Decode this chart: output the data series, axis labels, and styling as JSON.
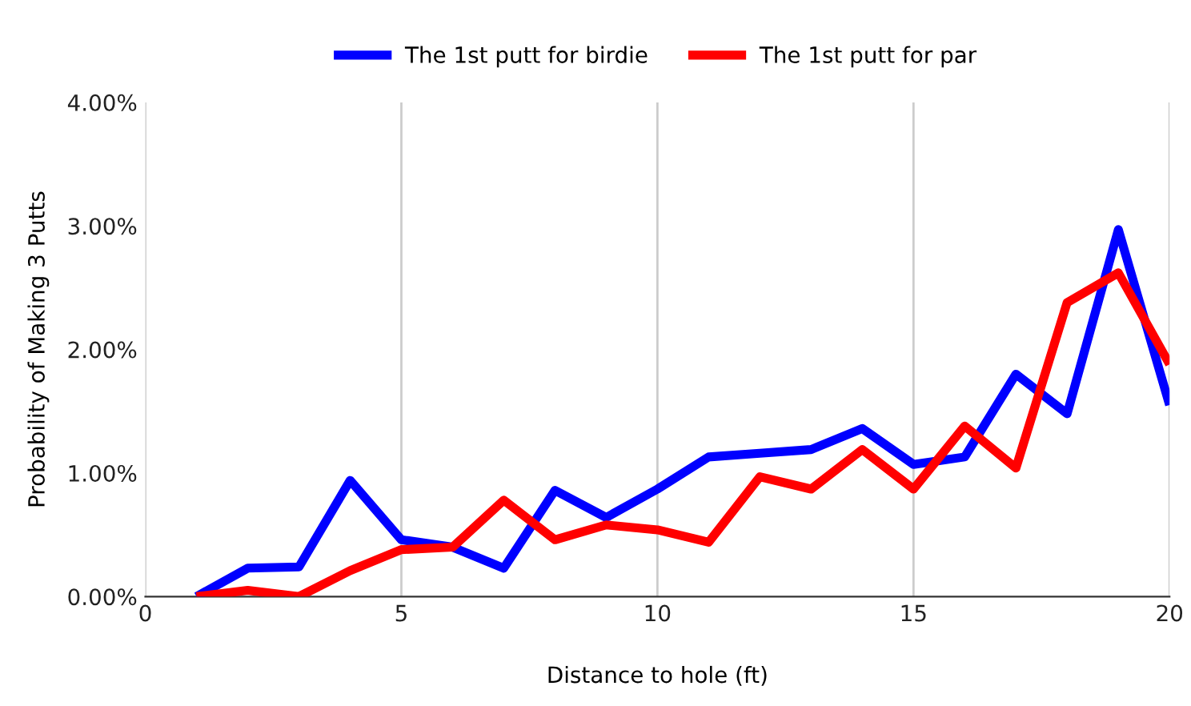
{
  "chart_data": {
    "type": "line",
    "xlabel": "Distance to hole (ft)",
    "ylabel": "Probability of Making 3 Putts",
    "x": [
      1,
      2,
      3,
      4,
      5,
      6,
      7,
      8,
      9,
      10,
      11,
      12,
      13,
      14,
      15,
      16,
      17,
      18,
      19,
      20
    ],
    "series": [
      {
        "name": "The 1st putt for birdie",
        "color": "#0000ff",
        "values": [
          0.0,
          0.23,
          0.24,
          0.94,
          0.46,
          0.4,
          0.23,
          0.86,
          0.64,
          0.87,
          1.13,
          1.16,
          1.19,
          1.36,
          1.07,
          1.13,
          1.8,
          1.48,
          2.97,
          1.55
        ]
      },
      {
        "name": "The 1st putt for par",
        "color": "#ff0000",
        "values": [
          0.0,
          0.05,
          0.0,
          0.21,
          0.38,
          0.4,
          0.78,
          0.46,
          0.58,
          0.54,
          0.44,
          0.97,
          0.87,
          1.19,
          0.87,
          1.38,
          1.04,
          2.38,
          2.62,
          1.88
        ]
      }
    ],
    "xlim": [
      0,
      20
    ],
    "xticks": [
      0,
      5,
      10,
      15,
      20
    ],
    "ylim": [
      0,
      4
    ],
    "yticks": [
      {
        "value": 0,
        "label": "0.00%"
      },
      {
        "value": 1,
        "label": "1.00%"
      },
      {
        "value": 2,
        "label": "2.00%"
      },
      {
        "value": 3,
        "label": "3.00%"
      },
      {
        "value": 4,
        "label": "4.00%"
      }
    ],
    "grid": "x",
    "legend": "top",
    "marker": "none",
    "line_style": "solid"
  }
}
